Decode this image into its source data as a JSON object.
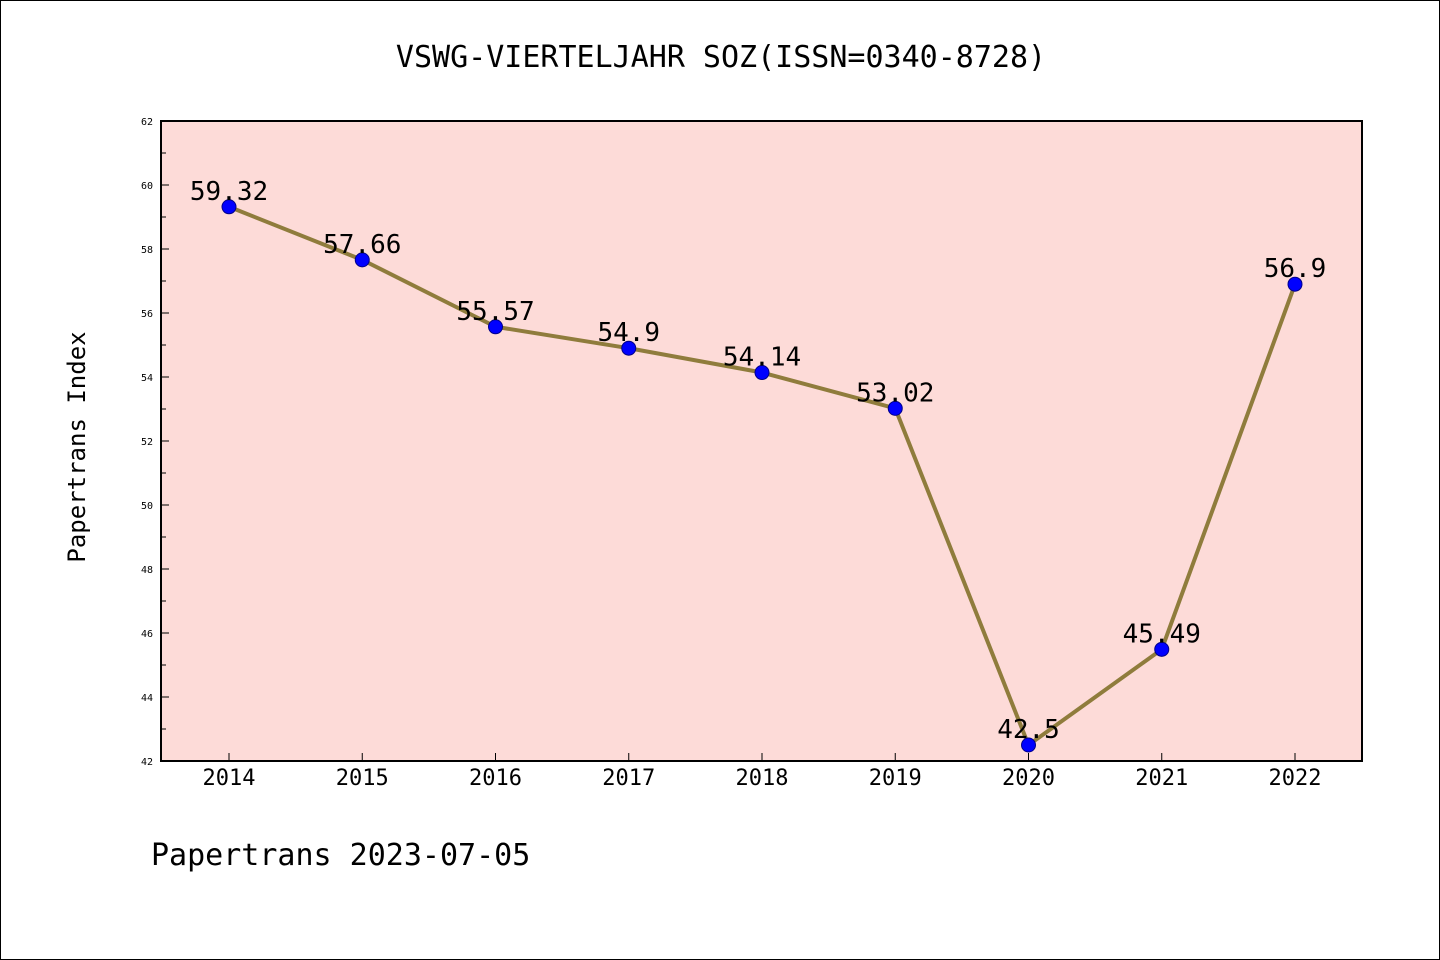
{
  "header": {
    "title": "VSWG-VIERTELJAHR SOZ(ISSN=0340-8728)"
  },
  "footer": {
    "text": "Papertrans 2023-07-05"
  },
  "colors": {
    "plot_background": "#fddbd8",
    "line": "#8f7c3c",
    "marker": "#0000ff",
    "axes": "#000000"
  },
  "chart_data": {
    "type": "line",
    "title": "VSWG-VIERTELJAHR SOZ(ISSN=0340-8728)",
    "xlabel": "",
    "ylabel": "Papertrans Index",
    "categories": [
      "2014",
      "2015",
      "2016",
      "2017",
      "2018",
      "2019",
      "2020",
      "2021",
      "2022"
    ],
    "series": [
      {
        "values": [
          59.32,
          57.66,
          55.57,
          54.9,
          54.14,
          53.02,
          42.5,
          45.49,
          56.9
        ],
        "labels": [
          "59.32",
          "57.66",
          "55.57",
          "54.9",
          "54.14",
          "53.02",
          "42.5",
          "45.49",
          "56.9"
        ]
      }
    ],
    "ylim": [
      42,
      62
    ],
    "yticks": [
      "42",
      "44",
      "46",
      "48",
      "50",
      "52",
      "54",
      "56",
      "58",
      "60",
      "62"
    ],
    "grid": false,
    "legend": "none"
  }
}
